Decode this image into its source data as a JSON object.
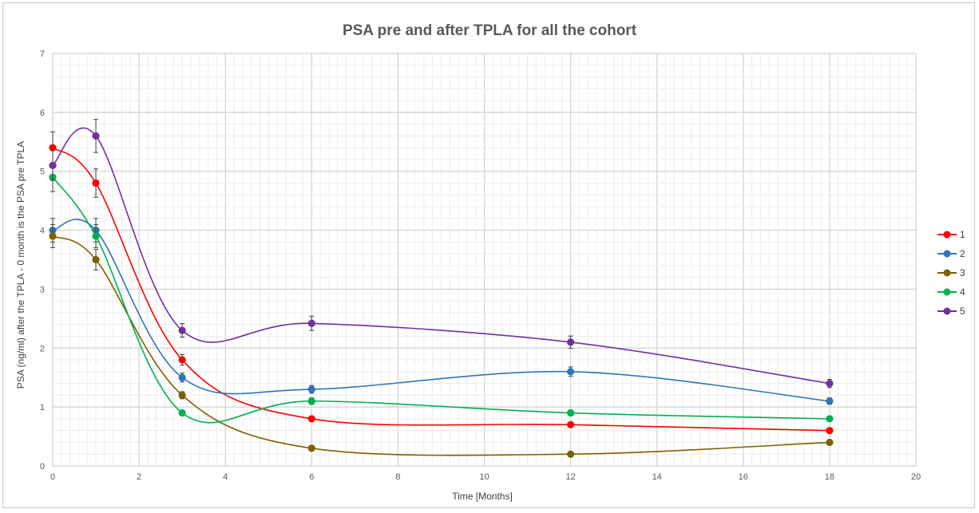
{
  "chart_data": {
    "type": "line",
    "title": "PSA pre and after TPLA for all the cohort",
    "xlabel": "Time [Months]",
    "ylabel": "PSA (ng/ml) after the TPLA - 0 month is the PSA pre TPLA",
    "xlim": [
      0,
      20
    ],
    "ylim": [
      0,
      7
    ],
    "xticks": [
      "0",
      "2",
      "4",
      "6",
      "8",
      "10",
      "12",
      "14",
      "16",
      "18",
      "20"
    ],
    "yticks": [
      "0",
      "1",
      "2",
      "3",
      "4",
      "5",
      "6",
      "7"
    ],
    "grid": true,
    "minor_grid": true,
    "smoothed": true,
    "error_bars": true,
    "legend_position": "right",
    "x": [
      0,
      1,
      3,
      6,
      12,
      18
    ],
    "series": [
      {
        "name": "1",
        "color": "#ff0000",
        "values": [
          5.4,
          4.8,
          1.8,
          0.8,
          0.7,
          0.6
        ],
        "errors": [
          0.27,
          0.24,
          0.09,
          0.04,
          0.035,
          0.03
        ]
      },
      {
        "name": "2",
        "color": "#2e75b6",
        "values": [
          4.0,
          4.0,
          1.5,
          1.3,
          1.6,
          1.1
        ],
        "errors": [
          0.2,
          0.2,
          0.075,
          0.065,
          0.08,
          0.055
        ]
      },
      {
        "name": "3",
        "color": "#7f6000",
        "values": [
          3.9,
          3.5,
          1.2,
          0.3,
          0.2,
          0.4
        ],
        "errors": [
          0.195,
          0.175,
          0.06,
          0.015,
          0.01,
          0.02
        ]
      },
      {
        "name": "4",
        "color": "#00b050",
        "values": [
          4.9,
          3.9,
          0.9,
          1.1,
          0.9,
          0.8
        ],
        "errors": [
          0.245,
          0.195,
          0.045,
          0.055,
          0.045,
          0.04
        ]
      },
      {
        "name": "5",
        "color": "#7030a0",
        "values": [
          5.1,
          5.6,
          2.3,
          2.42,
          2.1,
          1.4
        ],
        "errors": [
          0.255,
          0.28,
          0.115,
          0.121,
          0.105,
          0.07
        ]
      }
    ]
  }
}
